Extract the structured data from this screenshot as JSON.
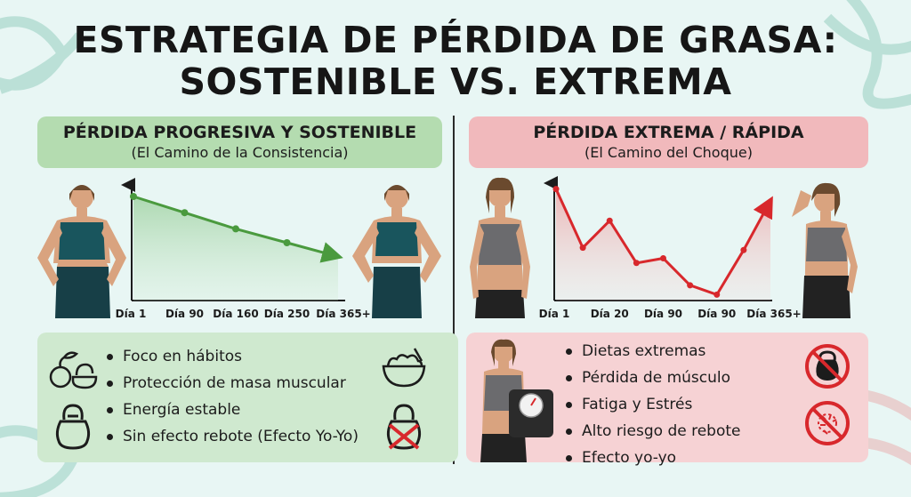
{
  "title": {
    "line1": "ESTRATEGIA DE PÉRDIDA DE GRASA:",
    "line2": "SOSTENIBLE VS. EXTREMA"
  },
  "left": {
    "heading": "PÉRDIDA PROGRESIVA Y SOSTENIBLE",
    "subheading": "(El Camino de la Consistencia)",
    "bullets": [
      "Foco en hábitos",
      "Protección de masa muscular",
      "Energía estable",
      "Sin efecto rebote (Efecto Yo-Yo)"
    ]
  },
  "right": {
    "heading": "PÉRDIDA EXTREMA / RÁPIDA",
    "subheading": "(El Camino del Choque)",
    "bullets": [
      "Dietas extremas",
      "Pérdida de músculo",
      "Fatiga y Estrés",
      "Alto riesgo de rebote",
      "Efecto yo-yo"
    ]
  },
  "colors": {
    "green_accent": "#4a9a3e",
    "red_accent": "#d8282c",
    "green_header": "#b4dcb0",
    "red_header": "#f1b9bc"
  },
  "chart_data": [
    {
      "type": "line",
      "categories": [
        "Día 1",
        "Día 90",
        "Día 160",
        "Día 250",
        "Día 365+"
      ],
      "values": [
        9,
        7.6,
        6.2,
        5,
        3.8
      ],
      "ylim": [
        0,
        10
      ],
      "trend": "descending"
    },
    {
      "type": "line",
      "categories": [
        "Día 1",
        "",
        "Día 20",
        "",
        "Día 90",
        "",
        "Día 90",
        "",
        "Día 365+"
      ],
      "values": [
        9.5,
        4.5,
        6.8,
        3.2,
        3.6,
        1.3,
        0.5,
        4.3,
        8.5
      ],
      "ylim": [
        0,
        10
      ],
      "trend": "rebound"
    }
  ],
  "icons": [
    "vegetables-icon",
    "salad-bowl-icon",
    "kettlebell-icon",
    "crossed-kettlebell-icon",
    "no-kettlebell-icon",
    "no-food-icon",
    "scale-icon"
  ]
}
